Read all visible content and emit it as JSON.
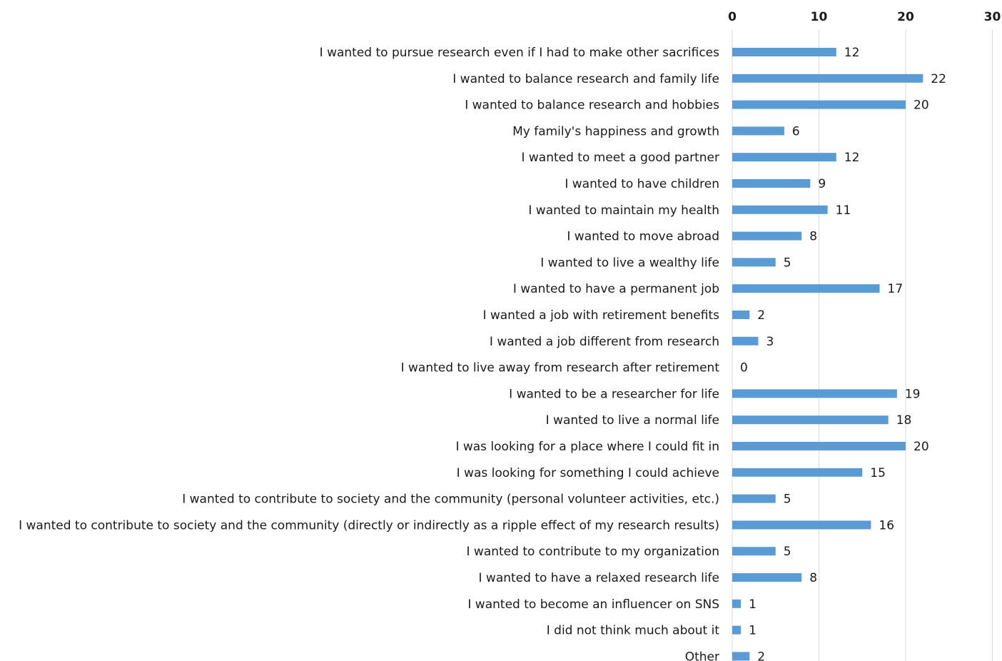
{
  "chart_data": {
    "type": "bar",
    "orientation": "horizontal",
    "title": "",
    "xlabel": "",
    "ylabel": "",
    "xlim": [
      0,
      30
    ],
    "x_ticks": [
      0,
      10,
      20,
      30
    ],
    "x_axis_position": "top",
    "grid": true,
    "legend": "none",
    "bar_color": "#5b9bd5",
    "categories": [
      "I wanted to pursue research even if I had to make other sacrifices",
      "I wanted to balance research and family life",
      "I wanted to balance research and hobbies",
      "My family's happiness and growth",
      "I wanted to meet a good partner",
      "I wanted to have children",
      "I wanted to maintain my health",
      "I wanted to move abroad",
      "I wanted to live a wealthy life",
      "I wanted to have a permanent job",
      "I wanted a job with retirement benefits",
      "I wanted a job different from research",
      "I wanted to live away from research after retirement",
      "I wanted to be a researcher for life",
      "I wanted to live a normal life",
      "I was looking for a place where I could fit in",
      "I was looking for something I could achieve",
      "I wanted to contribute to society and the community (personal volunteer activities, etc.)",
      "I wanted to contribute to society and the community (directly or indirectly as a ripple effect of my research results)",
      "I wanted to contribute to my organization",
      "I wanted to have a relaxed research life",
      "I wanted to become an influencer on SNS",
      "I did not think much about it",
      "Other"
    ],
    "values": [
      12,
      22,
      20,
      6,
      12,
      9,
      11,
      8,
      5,
      17,
      2,
      3,
      0,
      19,
      18,
      20,
      15,
      5,
      16,
      5,
      8,
      1,
      1,
      2
    ]
  }
}
